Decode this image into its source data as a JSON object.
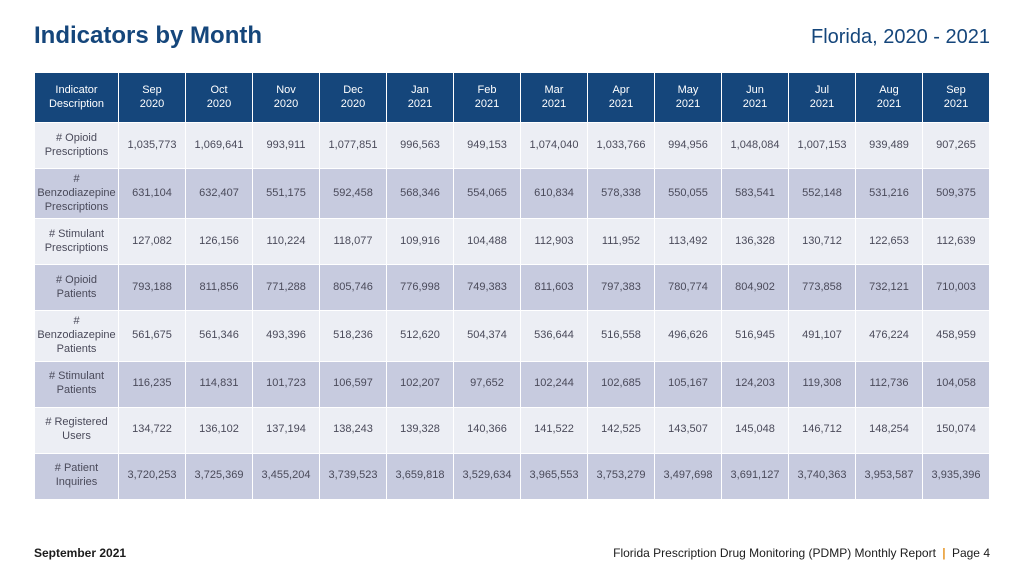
{
  "header": {
    "title": "Indicators by Month",
    "subtitle": "Florida, 2020 - 2021",
    "title_color": "#15467b",
    "subtitle_color": "#15467b"
  },
  "table": {
    "header_bg": "#15467b",
    "header_fg": "#ffffff",
    "row_bg_odd": "#eceef4",
    "row_bg_even": "#c7cbdf",
    "cell_fg": "#4a4a5a",
    "columns": [
      "Indicator Description",
      "Sep 2020",
      "Oct 2020",
      "Nov 2020",
      "Dec 2020",
      "Jan 2021",
      "Feb 2021",
      "Mar 2021",
      "Apr 2021",
      "May 2021",
      "Jun 2021",
      "Jul 2021",
      "Aug 2021",
      "Sep 2021"
    ],
    "rows": [
      {
        "indicator": "# Opioid Prescriptions",
        "cells": [
          "1,035,773",
          "1,069,641",
          "993,911",
          "1,077,851",
          "996,563",
          "949,153",
          "1,074,040",
          "1,033,766",
          "994,956",
          "1,048,084",
          "1,007,153",
          "939,489",
          "907,265"
        ]
      },
      {
        "indicator": "# Benzodiazepine Prescriptions",
        "cells": [
          "631,104",
          "632,407",
          "551,175",
          "592,458",
          "568,346",
          "554,065",
          "610,834",
          "578,338",
          "550,055",
          "583,541",
          "552,148",
          "531,216",
          "509,375"
        ]
      },
      {
        "indicator": "# Stimulant Prescriptions",
        "cells": [
          "127,082",
          "126,156",
          "110,224",
          "118,077",
          "109,916",
          "104,488",
          "112,903",
          "111,952",
          "113,492",
          "136,328",
          "130,712",
          "122,653",
          "112,639"
        ]
      },
      {
        "indicator": "# Opioid Patients",
        "cells": [
          "793,188",
          "811,856",
          "771,288",
          "805,746",
          "776,998",
          "749,383",
          "811,603",
          "797,383",
          "780,774",
          "804,902",
          "773,858",
          "732,121",
          "710,003"
        ]
      },
      {
        "indicator": "# Benzodiazepine Patients",
        "cells": [
          "561,675",
          "561,346",
          "493,396",
          "518,236",
          "512,620",
          "504,374",
          "536,644",
          "516,558",
          "496,626",
          "516,945",
          "491,107",
          "476,224",
          "458,959"
        ]
      },
      {
        "indicator": "# Stimulant Patients",
        "cells": [
          "116,235",
          "114,831",
          "101,723",
          "106,597",
          "102,207",
          "97,652",
          "102,244",
          "102,685",
          "105,167",
          "124,203",
          "119,308",
          "112,736",
          "104,058"
        ]
      },
      {
        "indicator": "# Registered Users",
        "cells": [
          "134,722",
          "136,102",
          "137,194",
          "138,243",
          "139,328",
          "140,366",
          "141,522",
          "142,525",
          "143,507",
          "145,048",
          "146,712",
          "148,254",
          "150,074"
        ]
      },
      {
        "indicator": "# Patient Inquiries",
        "cells": [
          "3,720,253",
          "3,725,369",
          "3,455,204",
          "3,739,523",
          "3,659,818",
          "3,529,634",
          "3,965,553",
          "3,753,279",
          "3,497,698",
          "3,691,127",
          "3,740,363",
          "3,953,587",
          "3,935,396"
        ]
      }
    ]
  },
  "footer": {
    "date": "September 2021",
    "report_name": "Florida Prescription Drug Monitoring (PDMP) Monthly Report",
    "page_label": "Page 4",
    "pipe_color": "#e89a2c"
  }
}
